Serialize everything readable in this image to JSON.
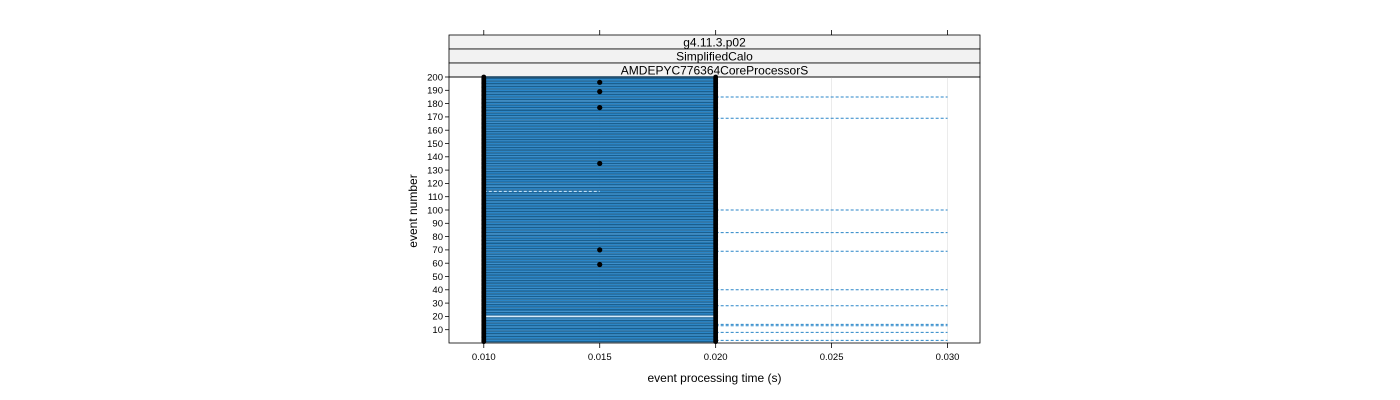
{
  "chart_data": {
    "type": "scatter",
    "panel_strips": [
      "g4.11.3.p02",
      "SimplifiedCalo",
      "AMDEPYC776364CoreProcessorS"
    ],
    "xlabel": "event processing time (s)",
    "ylabel": "event number",
    "xlim": [
      0.0085,
      0.0314
    ],
    "ylim": [
      0,
      200
    ],
    "x_ticks": [
      "0.010",
      "0.015",
      "0.020",
      "0.025",
      "0.030"
    ],
    "x_tick_values": [
      0.01,
      0.015,
      0.02,
      0.025,
      0.03
    ],
    "y_ticks": [
      10,
      20,
      30,
      40,
      50,
      60,
      70,
      80,
      90,
      100,
      110,
      120,
      130,
      140,
      150,
      160,
      170,
      180,
      190,
      200
    ],
    "n_events": 200,
    "segment_start": 0.01,
    "typical_segment_end": 0.02,
    "long_events": [
      {
        "event": 2,
        "end": 0.03
      },
      {
        "event": 8,
        "end": 0.03
      },
      {
        "event": 13,
        "end": 0.03
      },
      {
        "event": 14,
        "end": 0.03
      },
      {
        "event": 28,
        "end": 0.03
      },
      {
        "event": 40,
        "end": 0.03
      },
      {
        "event": 69,
        "end": 0.03
      },
      {
        "event": 83,
        "end": 0.03
      },
      {
        "event": 100,
        "end": 0.03
      },
      {
        "event": 169,
        "end": 0.03
      },
      {
        "event": 185,
        "end": 0.03
      }
    ],
    "short_events": [
      {
        "event": 114,
        "end": 0.015
      }
    ],
    "midpoint_events": [
      {
        "event": 59,
        "x": 0.015
      },
      {
        "event": 70,
        "x": 0.015
      },
      {
        "event": 135,
        "x": 0.015
      },
      {
        "event": 177,
        "x": 0.015
      },
      {
        "event": 189,
        "x": 0.015
      },
      {
        "event": 196,
        "x": 0.015
      }
    ],
    "highlight_events": [
      {
        "event": 20,
        "end": 0.02
      }
    ],
    "colors": {
      "segment": "#0080ff",
      "segment_dark": "#1a5f8f",
      "point": "#000000",
      "strip_fill": "#f2f2f2",
      "grid": "#e6e6e6"
    },
    "grid": true
  }
}
